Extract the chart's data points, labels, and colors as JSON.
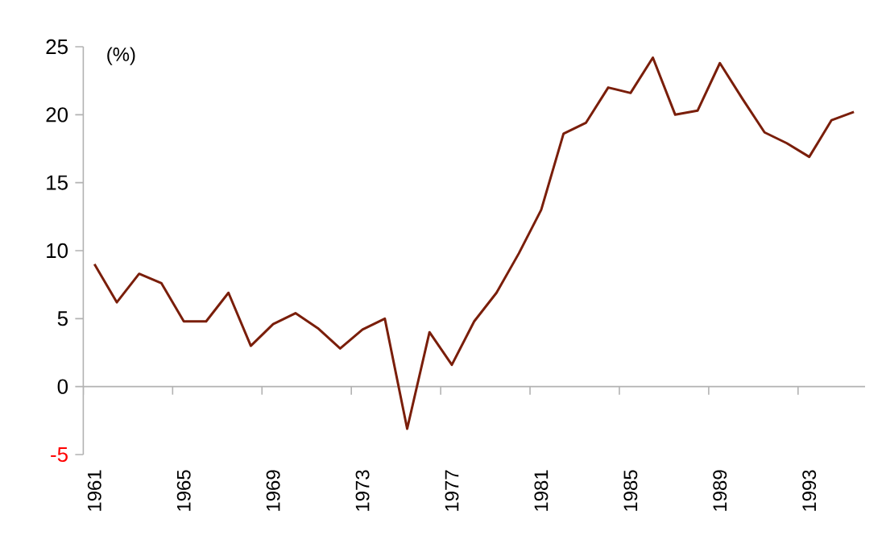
{
  "chart_data": {
    "type": "line",
    "ylabel": "(%)",
    "categories": [
      "1961",
      null,
      null,
      null,
      "1965",
      null,
      null,
      null,
      "1969",
      null,
      null,
      null,
      "1973",
      null,
      null,
      null,
      "1977",
      null,
      null,
      null,
      "1981",
      null,
      null,
      null,
      "1985",
      null,
      null,
      null,
      "1989",
      null,
      null,
      null,
      "1993",
      null,
      null
    ],
    "series": [
      {
        "color": "#7a1e0a",
        "values": [
          9.0,
          6.2,
          8.3,
          7.6,
          4.8,
          4.8,
          6.9,
          3.0,
          4.6,
          5.4,
          4.3,
          2.8,
          4.2,
          5.0,
          -3.1,
          4.0,
          1.6,
          4.8,
          6.9,
          9.8,
          13.0,
          18.6,
          19.4,
          22.0,
          21.6,
          24.2,
          20.0,
          20.3,
          23.8,
          21.2,
          18.7,
          17.9,
          16.9,
          19.6,
          20.2
        ]
      }
    ],
    "ylim": [
      -5,
      25
    ],
    "yticks": [
      -5,
      0,
      5,
      10,
      15,
      20,
      25
    ],
    "marker": "none",
    "line_style": "solid"
  }
}
